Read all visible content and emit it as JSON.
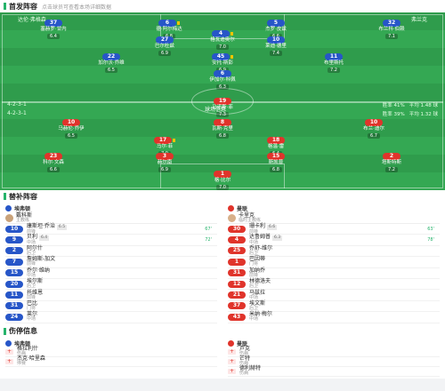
{
  "starting": {
    "title": "首发阵容",
    "subtitle": "点击球员可查看本场详细数据",
    "home_team": "达伦·弗格森",
    "away_team": "弗兰克",
    "home_formation_note": "4-2-3-1",
    "away_formation_note": "4-2-3-1",
    "home_stats": [
      "胜率 41%",
      "平均 1.48 球"
    ],
    "away_stats": [
      "胜率 39%",
      "平均 1.32 球"
    ],
    "center_label": "球场信息"
  },
  "home_players": [
    {
      "num": "37",
      "name": "塞赫罗·甘内",
      "rating": "6.4",
      "c": "blue"
    },
    {
      "num": "6",
      "name": "德·阿尔梅达",
      "rating": "6.8",
      "c": "blue",
      "card": true
    },
    {
      "num": "5",
      "name": "杰罗·皮兹",
      "rating": "6.6",
      "c": "blue"
    },
    {
      "num": "32",
      "name": "布兰科·伯赖",
      "rating": "7.1",
      "c": "blue"
    },
    {
      "num": "4",
      "name": "格瓦迪奥尔",
      "rating": "7.0",
      "c": "blue",
      "card": true
    },
    {
      "num": "27",
      "name": "巴尔杜兹",
      "rating": "6.9",
      "c": "blue"
    },
    {
      "num": "10",
      "name": "莱迪·德里",
      "rating": "7.4",
      "c": "blue"
    },
    {
      "num": "22",
      "name": "加尔沃·乔维",
      "rating": "6.5",
      "c": "blue"
    },
    {
      "num": "45",
      "name": "安托·斯彭",
      "rating": "6.9",
      "c": "blue",
      "card": true
    },
    {
      "num": "11",
      "name": "布里斯托",
      "rating": "7.2",
      "c": "blue"
    },
    {
      "num": "6",
      "name": "伊加尔·科佩",
      "rating": "6.3",
      "c": "blue"
    }
  ],
  "away_players": [
    {
      "num": "19",
      "name": "马诺斯·菲",
      "rating": "7.3",
      "c": "red"
    },
    {
      "num": "10",
      "name": "马赫伦·乔伊",
      "rating": "6.5",
      "c": "red"
    },
    {
      "num": "8",
      "name": "瓦斯·克里",
      "rating": "6.8",
      "c": "red"
    },
    {
      "num": "10",
      "name": "布兰·迪尔",
      "rating": "6.7",
      "c": "red"
    },
    {
      "num": "17",
      "name": "马尔·菲",
      "rating": "7.0",
      "c": "red",
      "card": true
    },
    {
      "num": "18",
      "name": "格温·雷",
      "rating": "6.4",
      "c": "red"
    },
    {
      "num": "23",
      "name": "科尔·文森",
      "rating": "6.6",
      "c": "red"
    },
    {
      "num": "3",
      "name": "赫尔南",
      "rating": "6.9",
      "c": "red"
    },
    {
      "num": "15",
      "name": "斯凯普",
      "rating": "6.8",
      "c": "red"
    },
    {
      "num": "2",
      "name": "塔斯特斯",
      "rating": "7.2",
      "c": "red"
    },
    {
      "num": "1",
      "name": "格·比尔",
      "rating": "7.0",
      "c": "red"
    }
  ],
  "bench": {
    "title": "替补阵容",
    "home": {
      "team": "埃弗顿",
      "coach": "戴科斯",
      "coach_role": "主教练",
      "players": [
        {
          "num": "10",
          "name": "康斯坦·乔治",
          "pos": "前锋",
          "tag": "6.5",
          "sub": "67'"
        },
        {
          "num": "9",
          "name": "贝利",
          "pos": "中场",
          "tag": "6.4",
          "sub": "72'"
        },
        {
          "num": "2",
          "name": "阿尔什",
          "pos": "后卫",
          "tag": "",
          "sub": ""
        },
        {
          "num": "7",
          "name": "詹姆斯-加文",
          "pos": "前锋",
          "tag": "",
          "sub": ""
        },
        {
          "num": "15",
          "name": "乔尔·维纳",
          "pos": "中场",
          "tag": "",
          "sub": ""
        },
        {
          "num": "20",
          "name": "埃尔斯",
          "pos": "后卫",
          "tag": "",
          "sub": ""
        },
        {
          "num": "11",
          "name": "托维恩",
          "pos": "前锋",
          "tag": "",
          "sub": ""
        },
        {
          "num": "31",
          "name": "巴比",
          "pos": "门将",
          "tag": "",
          "sub": ""
        },
        {
          "num": "24",
          "name": "莱尔",
          "pos": "中场",
          "tag": "",
          "sub": ""
        }
      ]
    },
    "away": {
      "team": "曼联",
      "coach": "卡里克",
      "coach_role": "临时主教练",
      "players": [
        {
          "num": "30",
          "name": "珊卡利",
          "pos": "前锋",
          "tag": "6.6",
          "sub": "63'"
        },
        {
          "num": "4",
          "name": "达鲁姆普",
          "pos": "中场",
          "tag": "6.3",
          "sub": "78'"
        },
        {
          "num": "25",
          "name": "乔舒-维尔",
          "pos": "后卫",
          "tag": "",
          "sub": ""
        },
        {
          "num": "1",
          "name": "巴因蒂",
          "pos": "门将",
          "tag": "",
          "sub": ""
        },
        {
          "num": "31",
          "name": "加纳乔",
          "pos": "前锋",
          "tag": "",
          "sub": ""
        },
        {
          "num": "12",
          "name": "林德洛夫",
          "pos": "后卫",
          "tag": "",
          "sub": ""
        },
        {
          "num": "21",
          "name": "马兹拉",
          "pos": "中场",
          "tag": "",
          "sub": ""
        },
        {
          "num": "37",
          "name": "埃文斯",
          "pos": "后卫",
          "tag": "",
          "sub": ""
        },
        {
          "num": "43",
          "name": "米纳·梅尔",
          "pos": "中场",
          "tag": "",
          "sub": ""
        }
      ]
    }
  },
  "injuries": {
    "title": "伤停信息",
    "home_team": "埃弗顿",
    "away_team": "曼联",
    "home": [
      {
        "name": "格拉利什",
        "note": "伤病"
      },
      {
        "name": "杰克·哈里森",
        "note": "停赛"
      }
    ],
    "away": [
      {
        "name": "卢克",
        "note": "伤病"
      },
      {
        "name": "芒特",
        "note": "伤病"
      },
      {
        "name": "德利赫特",
        "note": "伤病"
      }
    ]
  },
  "colors": {
    "home": "#2756c8",
    "away": "#e0342b",
    "pitch": "#34a853"
  }
}
